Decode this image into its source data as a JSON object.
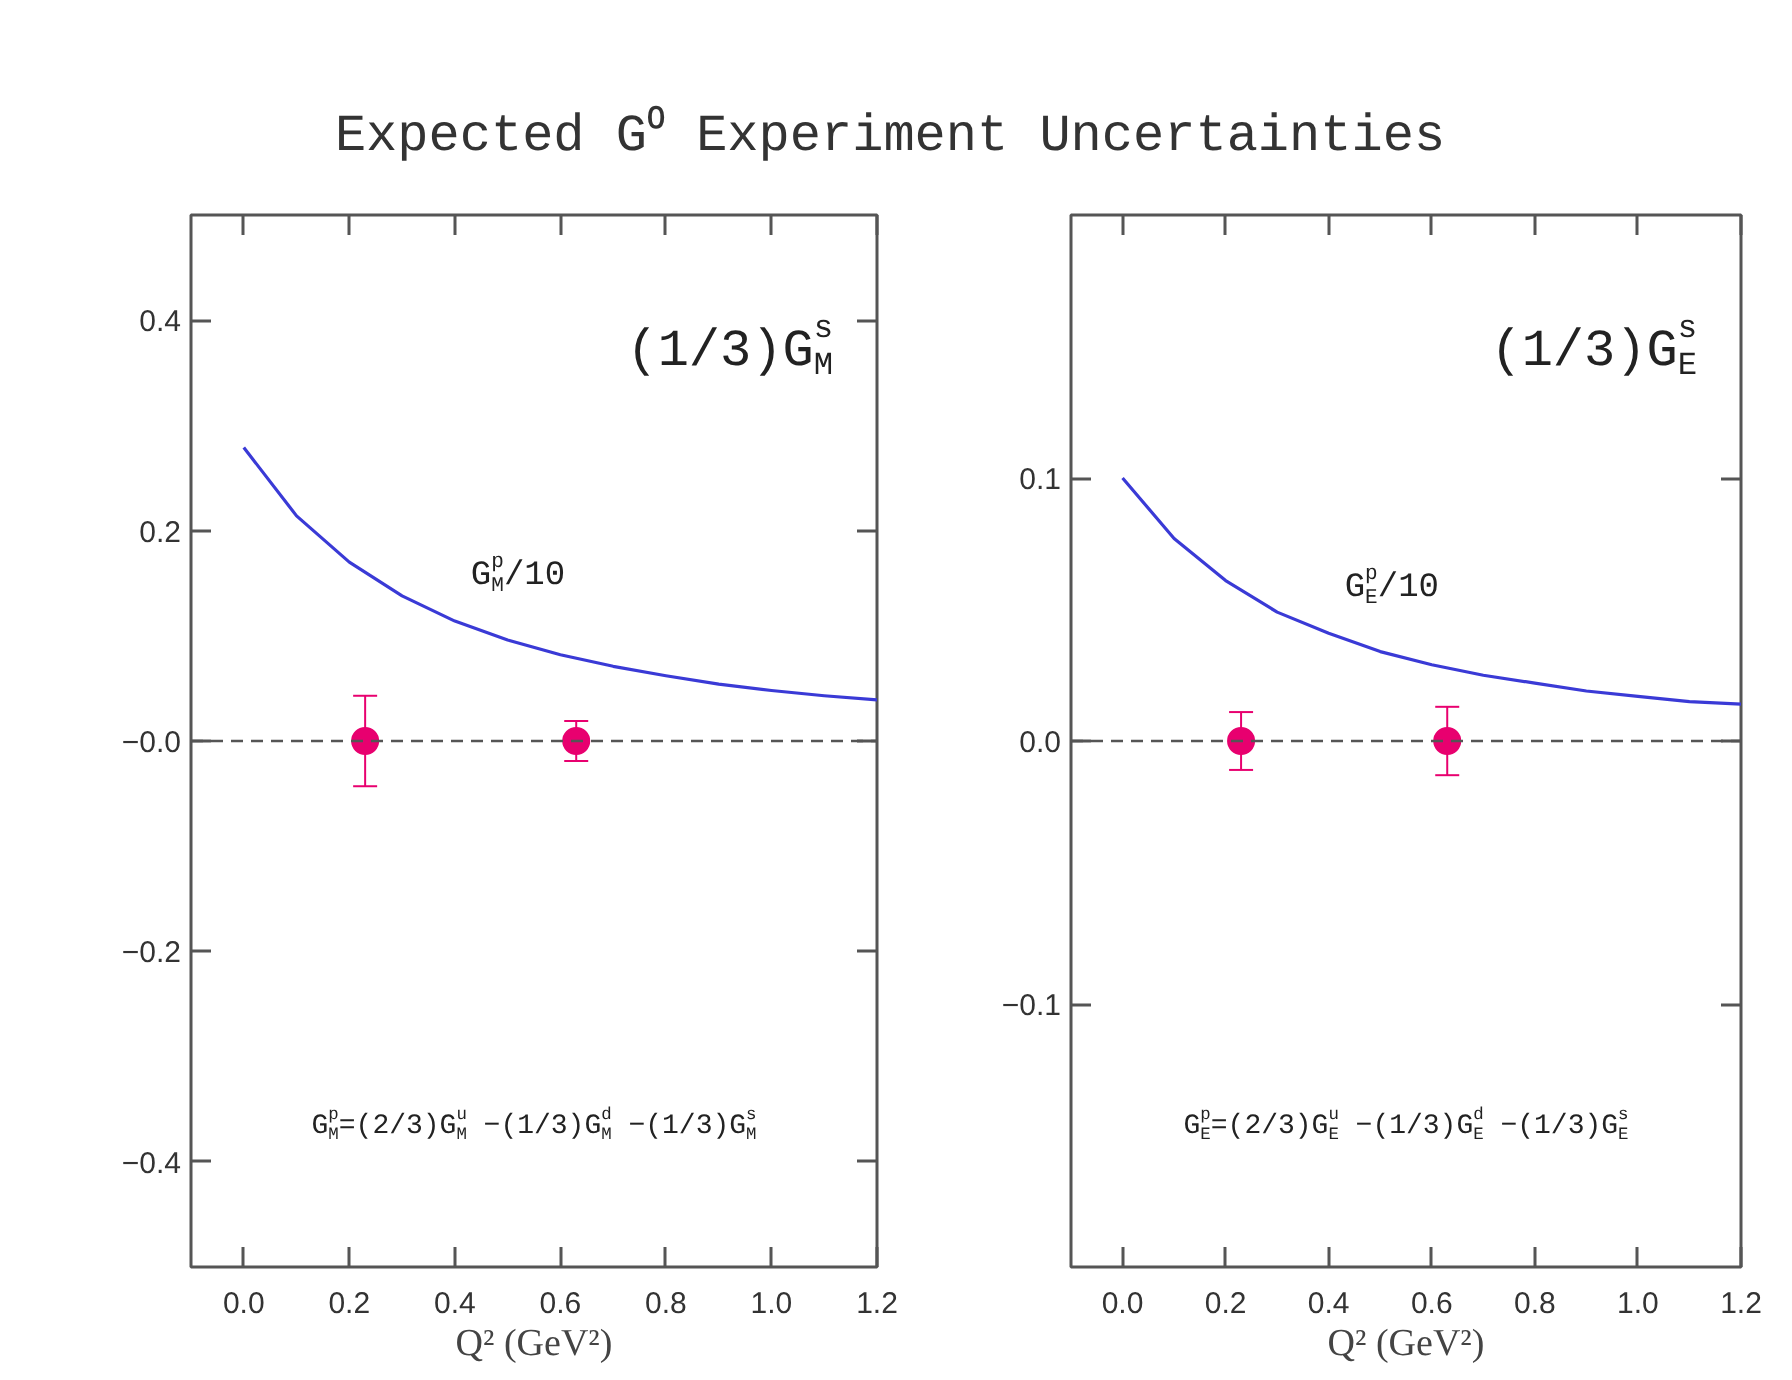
{
  "chart_data": [
    {
      "type": "line",
      "title": "Expected G⁰ Experiment Uncertainties",
      "xlabel": "Q² (GeV²)",
      "xlim": [
        -0.1,
        1.2
      ],
      "ylim": [
        -0.5,
        0.5
      ],
      "xticks": [
        {
          "value": 0,
          "label": "0.0"
        },
        {
          "value": 0.2,
          "label": "0.2"
        },
        {
          "value": 0.4,
          "label": "0.4"
        },
        {
          "value": 0.6,
          "label": "0.6"
        },
        {
          "value": 0.8,
          "label": "0.8"
        },
        {
          "value": 1.0,
          "label": "1.0"
        },
        {
          "value": 1.2,
          "label": "1.2"
        }
      ],
      "yticks": [
        {
          "value": -0.4,
          "label": "−0.4"
        },
        {
          "value": -0.2,
          "label": "−0.2"
        },
        {
          "value": 0,
          "label": "−0.0"
        },
        {
          "value": 0.2,
          "label": "0.2"
        },
        {
          "value": 0.4,
          "label": "0.4"
        }
      ],
      "annotations": [
        "(1/3)G$^{s}$$_{M}$",
        "G$^{p}$$_{M}$=(2/3)G$^{u}$$_{M}$ −(1/3)G$^{d}$$_{M}$ −(1/3)G$^{s}$$_{M}$"
      ],
      "ref_lines": [
        {
          "axis": "y",
          "value": 0,
          "line_style": "dashed",
          "color": "#555555"
        }
      ],
      "series": [
        {
          "name": "G$^{p}$$_{M}$/10",
          "color": "#3a3ad6",
          "x": [
            0,
            0.1,
            0.2,
            0.3,
            0.4,
            0.5,
            0.6,
            0.7,
            0.8,
            0.9,
            1.0,
            1.1,
            1.2
          ],
          "values": [
            0.279,
            0.214,
            0.17,
            0.138,
            0.114,
            0.096,
            0.082,
            0.071,
            0.062,
            0.054,
            0.048,
            0.043,
            0.039
          ]
        },
        {
          "type": "scatter",
          "marker": "circle",
          "color": "#e8006f",
          "x": [
            0.23,
            0.63
          ],
          "values": [
            0,
            0
          ],
          "errors": [
            0.043,
            0.019
          ]
        }
      ]
    },
    {
      "type": "line",
      "xlabel": "Q² (GeV²)",
      "xlim": [
        -0.1,
        1.2
      ],
      "ylim": [
        -0.2,
        0.2
      ],
      "xticks": [
        {
          "value": 0,
          "label": "0.0"
        },
        {
          "value": 0.2,
          "label": "0.2"
        },
        {
          "value": 0.4,
          "label": "0.4"
        },
        {
          "value": 0.6,
          "label": "0.6"
        },
        {
          "value": 0.8,
          "label": "0.8"
        },
        {
          "value": 1.0,
          "label": "1.0"
        },
        {
          "value": 1.2,
          "label": "1.2"
        }
      ],
      "yticks": [
        {
          "value": -0.1,
          "label": "−0.1"
        },
        {
          "value": 0,
          "label": "0.0"
        },
        {
          "value": 0.1,
          "label": "0.1"
        }
      ],
      "annotations": [
        "(1/3)G$^{s}$$_{E}$",
        "G$^{p}$$_{E}$=(2/3)G$^{u}$$_{E}$ −(1/3)G$^{d}$$_{E}$ −(1/3)G$^{s}$$_{E}$"
      ],
      "ref_lines": [
        {
          "axis": "y",
          "value": 0,
          "line_style": "dashed",
          "color": "#555555"
        }
      ],
      "series": [
        {
          "name": "G$^{p}$$_{E}$/10",
          "color": "#3a3ad6",
          "x": [
            0,
            0.1,
            0.2,
            0.3,
            0.4,
            0.5,
            0.6,
            0.7,
            0.8,
            0.9,
            1.0,
            1.1,
            1.2
          ],
          "values": [
            0.1,
            0.077,
            0.061,
            0.049,
            0.041,
            0.034,
            0.029,
            0.025,
            0.022,
            0.019,
            0.017,
            0.015,
            0.014
          ]
        },
        {
          "type": "scatter",
          "marker": "circle",
          "color": "#e8006f",
          "x": [
            0.23,
            0.63
          ],
          "values": [
            0,
            0
          ],
          "errors": [
            0.011,
            0.013
          ]
        }
      ]
    }
  ]
}
